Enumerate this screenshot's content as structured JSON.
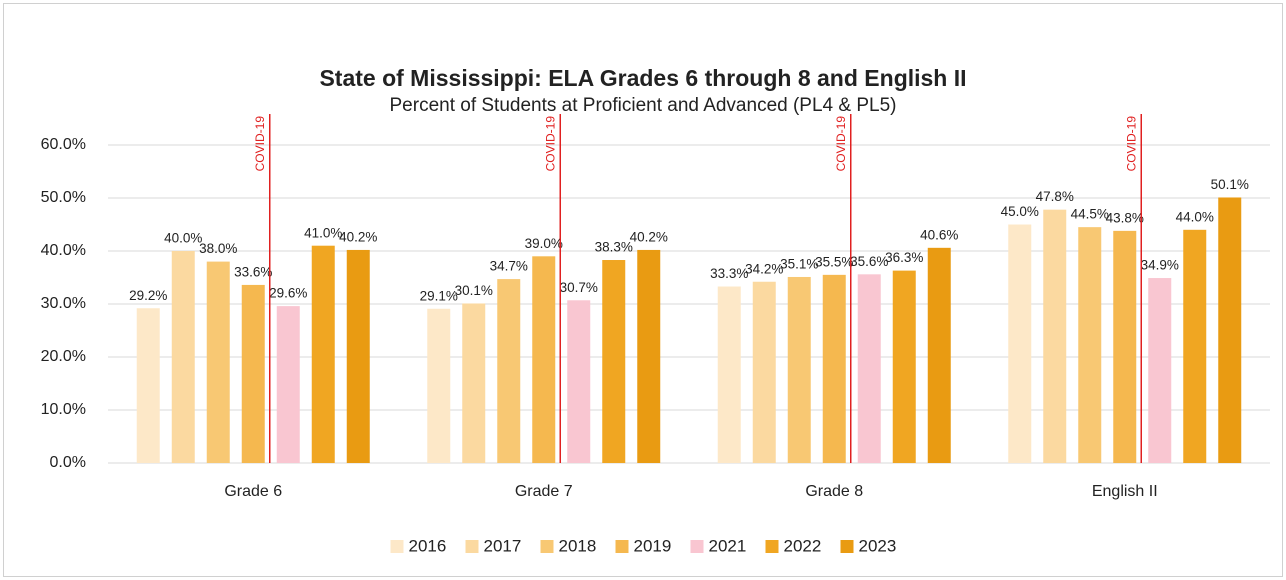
{
  "chart_data": {
    "type": "bar",
    "title": "State of Mississippi: ELA Grades 6 through 8 and English II",
    "subtitle": "Percent of Students at Proficient and Advanced (PL4 & PL5)",
    "annotation": "COVID-19",
    "categories": [
      "Grade 6",
      "Grade 7",
      "Grade 8",
      "English II"
    ],
    "series": [
      {
        "name": "2016",
        "color": "#fde8c8",
        "values": [
          29.2,
          29.1,
          33.3,
          45.0
        ],
        "value_labels": [
          "29.2%",
          "29.1%",
          "33.3%",
          "45.0%"
        ]
      },
      {
        "name": "2017",
        "color": "#fbd9a0",
        "values": [
          40.0,
          30.1,
          34.2,
          47.8
        ],
        "value_labels": [
          "40.0%",
          "30.1%",
          "34.2%",
          "47.8%"
        ]
      },
      {
        "name": "2018",
        "color": "#f8c873",
        "values": [
          38.0,
          34.7,
          35.1,
          44.5
        ],
        "value_labels": [
          "38.0%",
          "34.7%",
          "35.1%",
          "44.5%"
        ]
      },
      {
        "name": "2019",
        "color": "#f5b84f",
        "values": [
          33.6,
          39.0,
          35.5,
          43.8
        ],
        "value_labels": [
          "33.6%",
          "39.0%",
          "35.5%",
          "43.8%"
        ]
      },
      {
        "name": "2021",
        "color": "#f9c6d1",
        "values": [
          29.6,
          30.7,
          35.6,
          34.9
        ],
        "value_labels": [
          "29.6%",
          "30.7%",
          "35.6%",
          "34.9%"
        ]
      },
      {
        "name": "2022",
        "color": "#f0a622",
        "values": [
          41.0,
          38.3,
          36.3,
          44.0
        ],
        "value_labels": [
          "41.0%",
          "38.3%",
          "36.3%",
          "44.0%"
        ]
      },
      {
        "name": "2023",
        "color": "#e99b12",
        "values": [
          40.2,
          40.2,
          40.6,
          50.1
        ],
        "value_labels": [
          "40.2%",
          "40.2%",
          "40.6%",
          "50.1%"
        ]
      }
    ],
    "ylim": [
      0,
      60
    ],
    "yticks": [
      {
        "value": 0,
        "label": "0.0%"
      },
      {
        "value": 10,
        "label": "10.0%"
      },
      {
        "value": 20,
        "label": "20.0%"
      },
      {
        "value": 30,
        "label": "30.0%"
      },
      {
        "value": 40,
        "label": "40.0%"
      },
      {
        "value": 50,
        "label": "50.0%"
      },
      {
        "value": 60,
        "label": "60.0%"
      }
    ],
    "grid": true,
    "legend": "bottom"
  }
}
